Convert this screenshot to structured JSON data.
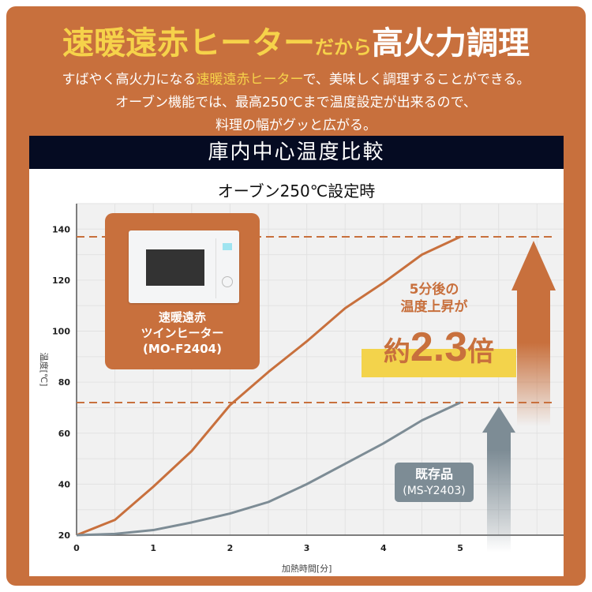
{
  "header": {
    "title_part1": "速暖遠赤ヒーター",
    "title_part2": "だから",
    "title_part3": "高火力調理",
    "line1_pre": "すばやく高火力になる",
    "line1_hl": "速暖遠赤ヒーター",
    "line1_post": "で、美味しく調理することができる。",
    "line2": "オーブン機能では、最高250℃まで温度設定が出来るので、",
    "line3": "料理の幅がグッと広がる。"
  },
  "section_title": "庫内中心温度比較",
  "condition": "オーブン250℃設定時",
  "product_card": {
    "line1": "速暖遠赤",
    "line2": "ツインヒーター",
    "line3": "(MO-F2404)"
  },
  "callout": {
    "line1": "5分後の",
    "line2": "温度上昇が",
    "prefix": "約",
    "value": "2.3",
    "suffix": "倍"
  },
  "existing_label": {
    "line1": "既存品",
    "line2": "(MS-Y2403)"
  },
  "colors": {
    "orange": "#c8703d",
    "gray": "#7d8c95",
    "navy": "#050b22",
    "yellow": "#f3d34b"
  },
  "chart_data": {
    "type": "line",
    "xlabel": "加熱時間[分]",
    "ylabel": "温度[℃]",
    "xlim": [
      0,
      6.1
    ],
    "ylim": [
      20,
      150
    ],
    "xticks": [
      0,
      1,
      2,
      3,
      4,
      5
    ],
    "yticks": [
      20,
      40,
      60,
      80,
      100,
      120,
      140
    ],
    "grid": true,
    "x": [
      0,
      0.5,
      1,
      1.5,
      2,
      2.5,
      3,
      3.5,
      4,
      4.5,
      5
    ],
    "series": [
      {
        "name": "速暖遠赤ツインヒーター(MO-F2404)",
        "color": "#c8703d",
        "values": [
          20,
          26,
          39,
          53,
          71,
          84,
          96,
          109,
          119,
          130,
          137
        ]
      },
      {
        "name": "既存品(MS-Y2403)",
        "color": "#7d8c95",
        "values": [
          20,
          20.5,
          22,
          25,
          28.5,
          33,
          40,
          48,
          56,
          65,
          72
        ]
      }
    ],
    "reference_lines": [
      137,
      72
    ]
  }
}
